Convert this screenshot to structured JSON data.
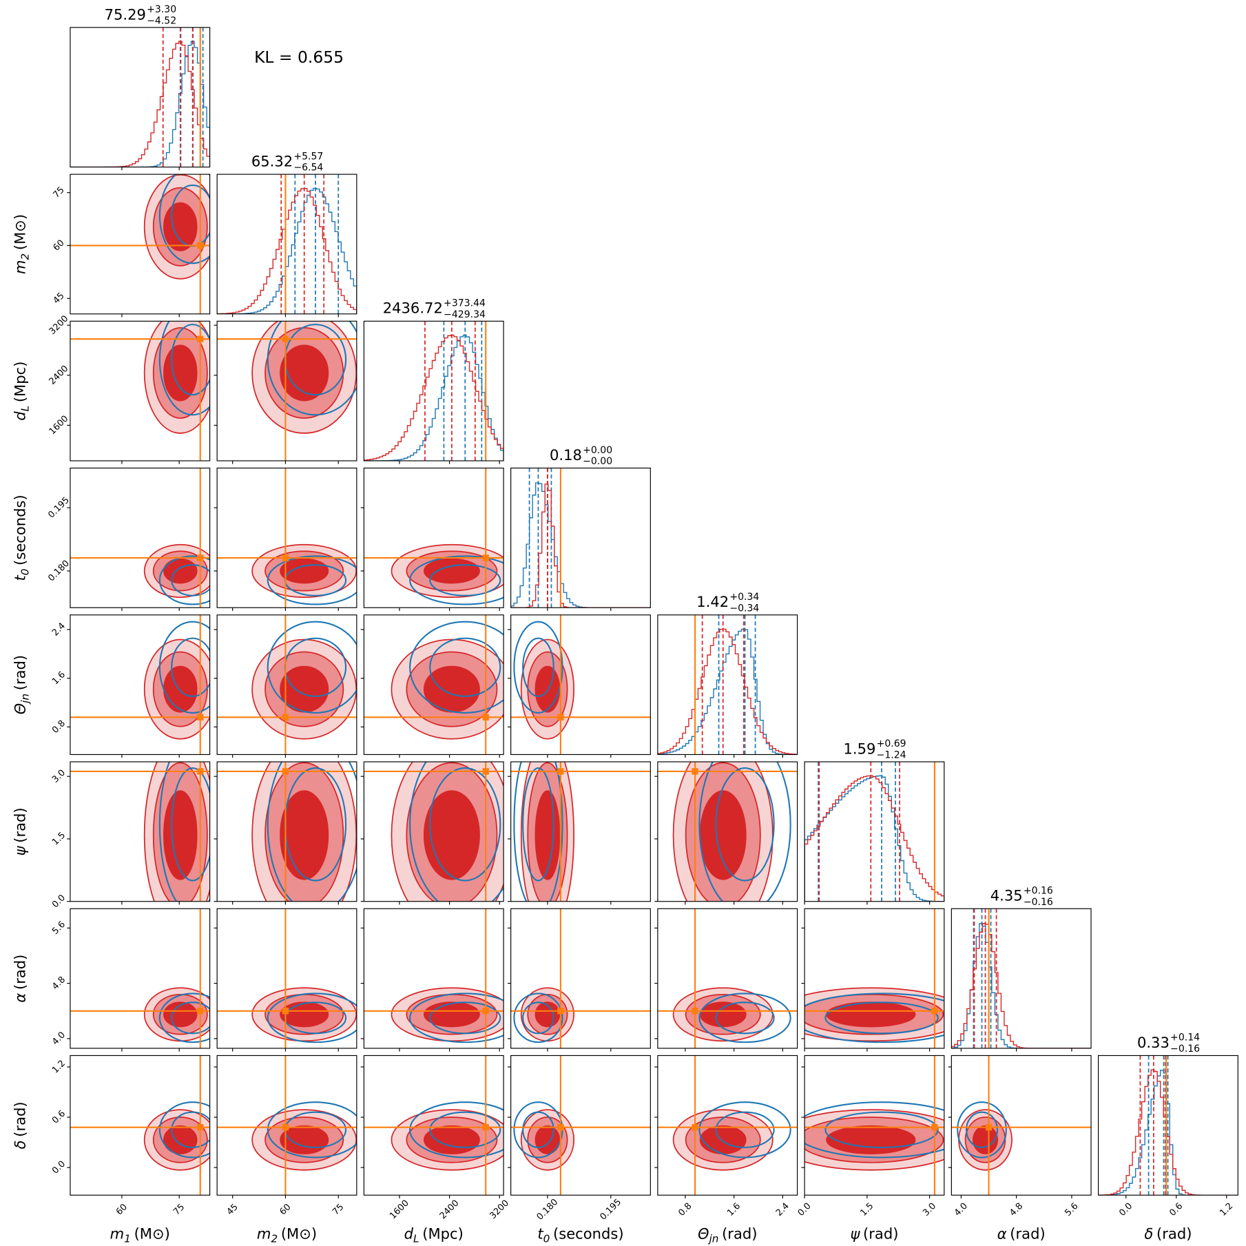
{
  "chart_data": {
    "type": "corner",
    "annotation": "KL = 0.655",
    "colors": {
      "primary": "#d62728",
      "secondary": "#1f77b4",
      "truth": "#ff7f0e"
    },
    "parameters": [
      {
        "label": {
          "symbol": "m",
          "sub": "1",
          "unit": "(M⊙)"
        },
        "lim": [
          46.5,
          83
        ],
        "ticks": [
          60,
          75
        ],
        "truth": 80.5,
        "title": {
          "value": 75.29,
          "plus": {
            "value": 3.3,
            "label": "+3.30"
          },
          "minus": {
            "value": -4.52,
            "label": "−4.52"
          }
        },
        "secondary_quantiles": [
          75.4,
          78.5,
          81.2
        ]
      },
      {
        "label": {
          "symbol": "m",
          "sub": "2",
          "unit": "(M⊙)"
        },
        "lim": [
          40.6,
          80.2
        ],
        "ticks": [
          45,
          60,
          75
        ],
        "truth": 60,
        "title": {
          "value": 65.32,
          "plus": {
            "value": 5.57,
            "label": "+5.57"
          },
          "minus": {
            "value": -6.54,
            "label": "−6.54"
          }
        },
        "secondary_quantiles": [
          62.7,
          68.5,
          75.0
        ]
      },
      {
        "label": {
          "symbol": "d",
          "sub": "L",
          "unit": "(Mpc)"
        },
        "lim": [
          1032,
          3265
        ],
        "ticks": [
          1600,
          2400,
          3200
        ],
        "truth": 2980,
        "title": {
          "value": 2436.72,
          "plus": {
            "value": 373.44,
            "label": "+373.44"
          },
          "minus": {
            "value": -429.34,
            "label": "−429.34"
          }
        },
        "secondary_quantiles": [
          2310,
          2650,
          2915
        ]
      },
      {
        "label": {
          "symbol": "t",
          "sub": "0",
          "unit": "(seconds)"
        },
        "lim": [
          0.1713,
          0.2044
        ],
        "ticks": [
          {
            "value": 0.18,
            "label": "0.180"
          },
          {
            "value": 0.195,
            "label": "0.195"
          }
        ],
        "truth": 0.1831,
        "title": {
          "value": 0.18,
          "plus": {
            "value": 0.0,
            "label": "+0.00"
          },
          "minus": {
            "value": 0.0,
            "label": "−0.00"
          }
        },
        "secondary_quantiles": [
          0.1757,
          0.1778,
          0.1809
        ]
      },
      {
        "label": {
          "symbol": "Θ",
          "sub": "jn",
          "unit": "(rad)"
        },
        "lim": [
          0.347,
          2.64
        ],
        "ticks": [
          0.8,
          1.6,
          2.4
        ],
        "truth": 0.96,
        "title": {
          "value": 1.42,
          "plus": {
            "value": 0.34,
            "label": "+0.34"
          },
          "minus": {
            "value": -0.34,
            "label": "−0.34"
          }
        },
        "secondary_quantiles": [
          1.35,
          1.78,
          1.95
        ]
      },
      {
        "label": {
          "symbol": "ψ",
          "unit": "(rad)"
        },
        "lim": [
          0,
          3.35
        ],
        "ticks": [
          {
            "value": 0,
            "label": "0.0"
          },
          1.5,
          {
            "value": 3,
            "label": "3.0"
          }
        ],
        "truth": 3.12,
        "title": {
          "value": 1.59,
          "plus": {
            "value": 0.69,
            "label": "+0.69"
          },
          "minus": {
            "value": -1.24,
            "label": "−1.24"
          }
        },
        "secondary_quantiles": [
          0.33,
          1.85,
          2.18
        ]
      },
      {
        "label": {
          "symbol": "α",
          "unit": "(rad)"
        },
        "lim": [
          3.86,
          5.88
        ],
        "ticks": [
          {
            "value": 4,
            "label": "4.0"
          },
          4.8,
          5.6
        ],
        "truth": 4.4,
        "title": {
          "value": 4.35,
          "plus": {
            "value": 0.16,
            "label": "+0.16"
          },
          "minus": {
            "value": -0.16,
            "label": "−0.16"
          }
        },
        "secondary_quantiles": [
          4.18,
          4.3,
          4.43
        ]
      },
      {
        "label": {
          "symbol": "δ",
          "unit": "(rad)"
        },
        "lim": [
          -0.33,
          1.336
        ],
        "ticks": [
          {
            "value": 0,
            "label": "0.0"
          },
          0.6,
          1.2
        ],
        "truth": 0.48,
        "title": {
          "value": 0.33,
          "plus": {
            "value": 0.14,
            "label": "+0.14"
          },
          "minus": {
            "value": -0.16,
            "label": "−0.16"
          }
        },
        "secondary_quantiles": [
          0.27,
          0.45,
          0.5
        ]
      }
    ]
  }
}
